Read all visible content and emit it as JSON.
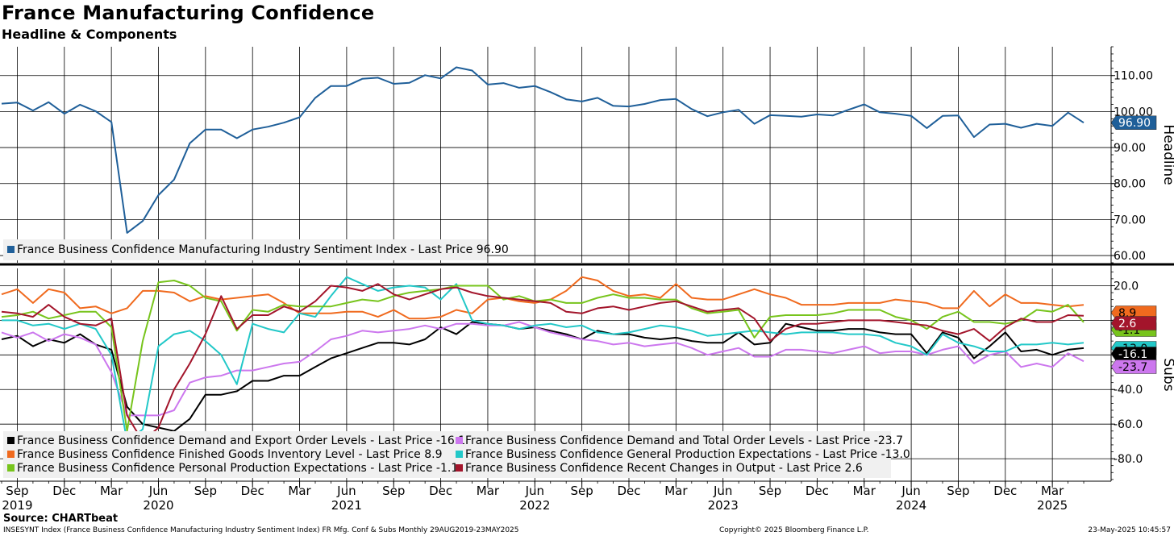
{
  "title": "France Manufacturing Confidence",
  "subtitle": "Headline & Components",
  "source": "Source: CHARTbeat",
  "footer": {
    "left": "INSESYNT Index (France Business Confidence Manufacturing Industry Sentiment Index) FR Mfg. Conf & Subs  Monthly 29AUG2019-23MAY2025",
    "middle": "Copyright© 2025 Bloomberg Finance L.P.",
    "right": "23-May-2025 10:45:57"
  },
  "colors": {
    "headline": "#1f5f99",
    "demand_export": "#000000",
    "demand_total": "#cc77ee",
    "finished_goods": "#f06a1e",
    "general_production": "#22c8c8",
    "personal_production": "#77c41c",
    "recent_output": "#a3152b"
  },
  "chart_data": [
    {
      "type": "line",
      "name": "headline-panel",
      "axis_title": "Headline",
      "ylim": [
        58,
        118
      ],
      "yticks": [
        60,
        70,
        80,
        90,
        100,
        110
      ],
      "ytick_labels": [
        "60.00",
        "70.00",
        "80.00",
        "90.00",
        "100.00",
        "110.00"
      ],
      "grid": true,
      "legend": "bottom-left",
      "x_start": "2019-08",
      "series": [
        {
          "name": "France Business Confidence Manufacturing Industry Sentiment Index",
          "legend_label": "France Business Confidence Manufacturing Industry Sentiment Index - Last Price 96.90",
          "last_label": "96.90",
          "color_key": "headline",
          "values": [
            102.2,
            102.5,
            100.3,
            102.6,
            99.4,
            101.9,
            100.1,
            97.1,
            66.3,
            69.6,
            76.8,
            81.1,
            91.2,
            95.0,
            95.0,
            92.6,
            95.0,
            95.8,
            96.9,
            98.4,
            103.8,
            107.1,
            107.1,
            109.1,
            109.4,
            107.7,
            108.0,
            110.1,
            109.2,
            112.3,
            111.4,
            107.5,
            107.9,
            106.6,
            107.1,
            105.4,
            103.4,
            102.8,
            103.8,
            101.6,
            101.4,
            102.1,
            103.2,
            103.5,
            100.7,
            98.7,
            99.8,
            100.5,
            96.6,
            99.0,
            98.8,
            98.6,
            99.2,
            98.9,
            100.5,
            102.0,
            99.8,
            99.4,
            98.8,
            95.4,
            98.8,
            98.9,
            92.9,
            96.4,
            96.6,
            95.5,
            96.6,
            96.0,
            99.7,
            96.9
          ]
        }
      ]
    },
    {
      "type": "line",
      "name": "subs-panel",
      "axis_title": "Subs",
      "ylim": [
        -93,
        30
      ],
      "yticks": [
        -80,
        -60,
        -40,
        -20,
        0,
        20
      ],
      "ytick_labels": [
        "-80.0",
        "-60.0",
        "-40.0",
        "-20.0",
        "",
        "20.0"
      ],
      "grid": true,
      "legend": "bottom-left",
      "x_start": "2019-08",
      "x_tick_labels": [
        "Sep",
        "Dec",
        "Mar",
        "Jun",
        "Sep",
        "Dec",
        "Mar",
        "Jun",
        "Sep",
        "Dec",
        "Mar",
        "Jun",
        "Sep",
        "Dec",
        "Mar",
        "Jun",
        "Sep",
        "Dec",
        "Mar",
        "Jun",
        "Sep",
        "Dec",
        "Mar"
      ],
      "x_year_labels": [
        "2019",
        "2020",
        "2021",
        "2022",
        "2023",
        "2024",
        "2025"
      ],
      "series": [
        {
          "name": "France Business Confidence Demand and Export Order Levels",
          "legend_label": "France Business Confidence Demand and Export Order Levels - Last Price  -16.1",
          "last_label": "-16.1",
          "color_key": "demand_export",
          "values": [
            -11,
            -9,
            -15,
            -11,
            -13,
            -8,
            -14,
            -17,
            -50,
            -60,
            -62,
            -64,
            -57,
            -43,
            -43,
            -41,
            -35,
            -35,
            -32,
            -32,
            -27,
            -22,
            -19,
            -16,
            -13,
            -13,
            -14,
            -11,
            -4,
            -8,
            -1,
            -2,
            -3,
            -5,
            -4,
            -6,
            -8,
            -11,
            -6,
            -8,
            -8,
            -10,
            -11,
            -10,
            -12,
            -13,
            -13,
            -7,
            -14,
            -13,
            -2,
            -4,
            -6,
            -6,
            -5,
            -5,
            -7,
            -8,
            -8,
            -19,
            -7,
            -10,
            -22,
            -15,
            -7,
            -18,
            -17,
            -20,
            -17,
            -16.1
          ]
        },
        {
          "name": "France Business Confidence Demand and Total Order Levels",
          "legend_label": "France Business Confidence Demand and Total Order Levels - Last Price  -23.7",
          "last_label": "-23.7",
          "color_key": "demand_total",
          "values": [
            -7,
            -10,
            -7,
            -12,
            -8,
            -10,
            -14,
            -30,
            -55,
            -55,
            -55,
            -52,
            -36,
            -33,
            -32,
            -29,
            -29,
            -27,
            -25,
            -24,
            -18,
            -11,
            -9,
            -6,
            -7,
            -6,
            -5,
            -3,
            -5,
            -2,
            -2,
            -3,
            -3,
            -1,
            -4,
            -7,
            -9,
            -11,
            -12,
            -14,
            -13,
            -15,
            -14,
            -13,
            -16,
            -20,
            -18,
            -16,
            -21,
            -21,
            -17,
            -17,
            -18,
            -19,
            -17,
            -15,
            -19,
            -18,
            -18,
            -20,
            -17,
            -15,
            -25,
            -20,
            -18,
            -27,
            -25,
            -27,
            -19,
            -23.7
          ]
        },
        {
          "name": "France Business Confidence Finished Goods Inventory Level",
          "legend_label": "France Business Confidence Finished Goods Inventory Level - Last Price      8.9",
          "last_label": "8.9",
          "color_key": "finished_goods",
          "values": [
            15,
            18,
            10,
            18,
            16,
            7,
            8,
            4,
            7,
            17,
            17,
            16,
            11,
            14,
            12,
            13,
            14,
            15,
            10,
            4,
            4,
            4,
            5,
            5,
            2,
            6,
            1,
            1,
            2,
            6,
            4,
            12,
            13,
            11,
            10,
            12,
            17,
            25,
            23,
            17,
            14,
            15,
            13,
            21,
            13,
            12,
            12,
            15,
            18,
            15,
            13,
            9,
            9,
            9,
            10,
            10,
            10,
            12,
            11,
            10,
            7,
            7,
            17,
            8,
            15,
            10,
            10,
            9,
            8,
            8.9
          ]
        },
        {
          "name": "France Business Confidence General Production Expectations",
          "legend_label": "France Business Confidence General Production Expectations - Last Price -13.0",
          "last_label": "-13.0",
          "color_key": "general_production",
          "values": [
            0,
            0,
            -3,
            -2,
            -5,
            -2,
            -5,
            -20,
            -70,
            -63,
            -15,
            -8,
            -6,
            -12,
            -20,
            -37,
            -2,
            -5,
            -7,
            4,
            2,
            14,
            25,
            21,
            17,
            19,
            20,
            19,
            12,
            21,
            0,
            -2,
            -3,
            -5,
            -3,
            -2,
            -4,
            -3,
            -7,
            -8,
            -7,
            -5,
            -3,
            -4,
            -6,
            -9,
            -8,
            -7,
            -6,
            -7,
            -8,
            -7,
            -7,
            -7,
            -8,
            -8,
            -9,
            -13,
            -15,
            -20,
            -8,
            -13,
            -15,
            -18,
            -18,
            -14,
            -14,
            -13,
            -14,
            -13.0
          ]
        },
        {
          "name": "France Business Confidence Personal Production Expectations",
          "legend_label": "France Business Confidence Personal Production Expectations - Last Price -1.1",
          "last_label": "-1.1",
          "color_key": "personal_production",
          "values": [
            2,
            3,
            5,
            1,
            3,
            5,
            5,
            -4,
            -64,
            -12,
            22,
            23,
            20,
            13,
            11,
            -6,
            6,
            5,
            9,
            8,
            8,
            8,
            10,
            12,
            11,
            14,
            16,
            17,
            18,
            20,
            20,
            20,
            12,
            14,
            11,
            12,
            10,
            10,
            13,
            15,
            13,
            13,
            12,
            12,
            7,
            4,
            5,
            6,
            -10,
            2,
            3,
            3,
            3,
            4,
            6,
            6,
            6,
            2,
            0,
            -5,
            2,
            5,
            -1,
            -1,
            -2,
            0,
            6,
            5,
            9,
            -1.1
          ]
        },
        {
          "name": "France Business Confidence Recent Changes in Output",
          "legend_label": "France Business Confidence Recent Changes in Output - Last Price          2.6",
          "last_label": "2.6",
          "color_key": "recent_output",
          "values": [
            5,
            4,
            2,
            9,
            2,
            -2,
            -3,
            1,
            -55,
            -70,
            -62,
            -40,
            -25,
            -8,
            14,
            -5,
            3,
            3,
            8,
            5,
            11,
            20,
            19,
            17,
            21,
            15,
            12,
            15,
            18,
            19,
            16,
            14,
            13,
            12,
            11,
            10,
            5,
            4,
            7,
            8,
            6,
            8,
            10,
            11,
            8,
            5,
            6,
            7,
            1,
            -12,
            -5,
            -2,
            -2,
            -1,
            0,
            0,
            0,
            -1,
            -2,
            -3,
            -6,
            -8,
            -5,
            -12,
            -4,
            1,
            -1,
            -1,
            3,
            2.6
          ]
        }
      ]
    }
  ]
}
